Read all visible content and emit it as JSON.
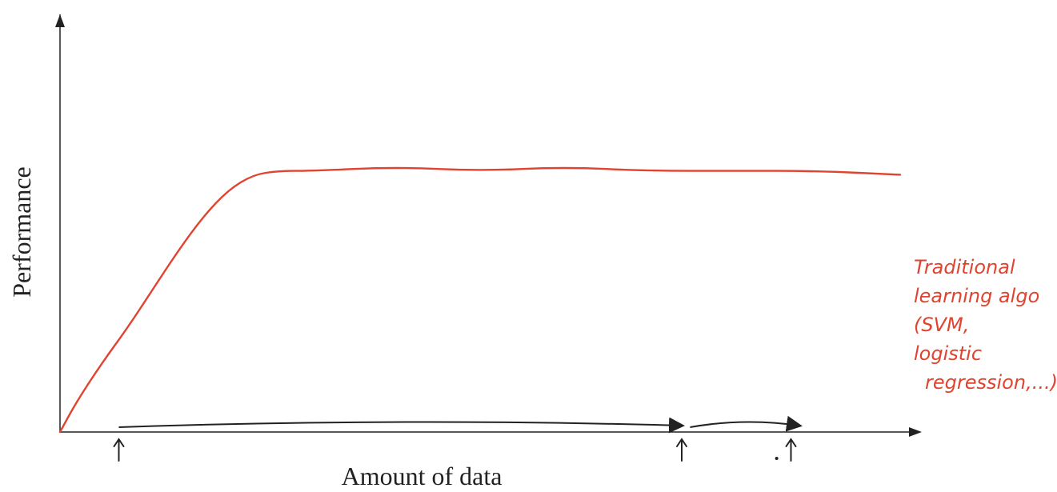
{
  "chart_data": {
    "type": "line",
    "xlabel": "Amount of data",
    "ylabel": "Performance",
    "xlim": [
      0,
      1
    ],
    "ylim": [
      0,
      1
    ],
    "grid": false,
    "series": [
      {
        "name": "Traditional learning algo (SVM, logistic regression,...)",
        "color": "#e0432f",
        "x": [
          0,
          0.02,
          0.05,
          0.08,
          0.11,
          0.14,
          0.17,
          0.2,
          0.23,
          0.26,
          0.3,
          0.4,
          0.5,
          0.6,
          0.7,
          0.8,
          0.9,
          1.0
        ],
        "y": [
          0,
          0.08,
          0.18,
          0.27,
          0.37,
          0.47,
          0.56,
          0.63,
          0.67,
          0.68,
          0.68,
          0.69,
          0.68,
          0.69,
          0.68,
          0.68,
          0.68,
          0.67
        ]
      }
    ],
    "annotations": [
      {
        "type": "bracket-arrow",
        "label": "",
        "color": "#222222",
        "segments": [
          {
            "x_start": 0.07,
            "x_end": 0.74
          },
          {
            "x_start": 0.75,
            "x_end": 0.88
          }
        ],
        "marker_arrows_x": [
          0.07,
          0.74,
          0.87
        ]
      }
    ],
    "series_label_lines": [
      "Traditional",
      "learning algo",
      "(SVM,",
      "logistic",
      "regression,...)"
    ]
  },
  "colors": {
    "axis": "#222222",
    "series_line": "#e0432f",
    "annotation": "#222222"
  }
}
